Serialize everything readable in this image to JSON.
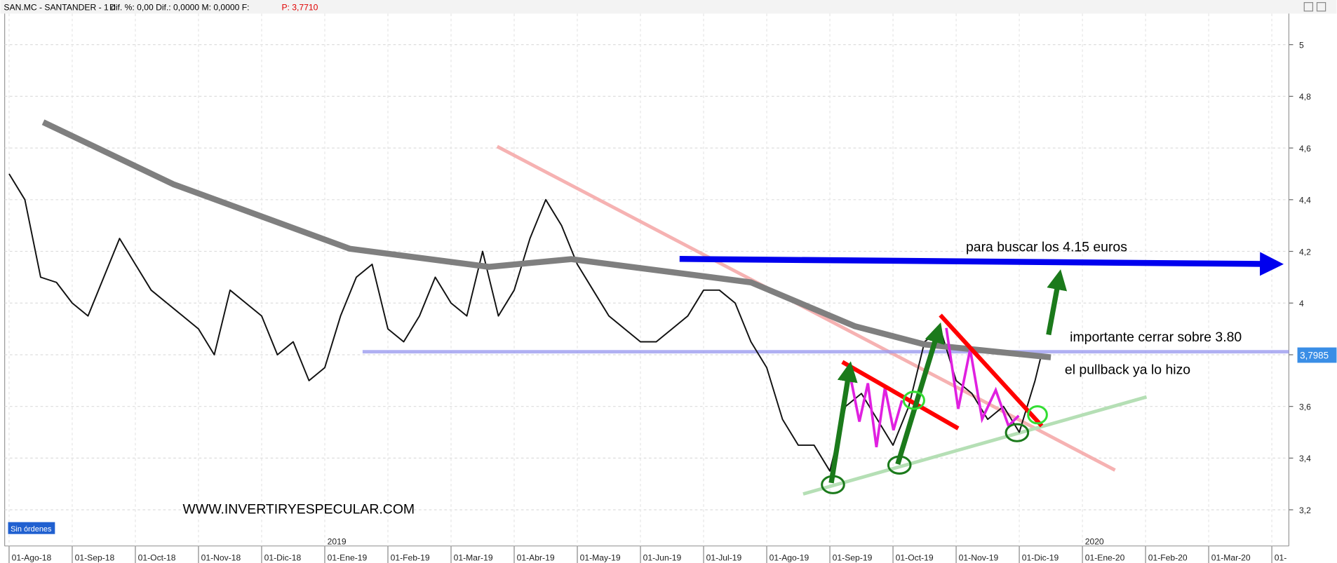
{
  "chart_data": {
    "type": "line",
    "header": {
      "symbol": "SAN.MC - SANTANDER -  1 d",
      "stats": "Dif. %: 0,00   Dif.: 0,0000   M: 0,0000   F:",
      "price": "P: 3,7710"
    },
    "series": [
      {
        "color": "#111111",
        "width": 1.6,
        "x": [
          0,
          0.25,
          0.5,
          0.75,
          1,
          1.25,
          1.5,
          1.75,
          2,
          2.25,
          2.5,
          2.75,
          3,
          3.25,
          3.5,
          3.75,
          4,
          4.25,
          4.5,
          4.75,
          5,
          5.25,
          5.5,
          5.75,
          6,
          6.25,
          6.5,
          6.75,
          7,
          7.25,
          7.5,
          7.75,
          8,
          8.25,
          8.5,
          8.75,
          9,
          9.25,
          9.5,
          9.75,
          10,
          10.25,
          10.5,
          10.75,
          11,
          11.25,
          11.5,
          11.75,
          12,
          12.25,
          12.5,
          12.75,
          13,
          13.25,
          13.5,
          13.75,
          14,
          14.25,
          14.5,
          14.75,
          15,
          15.25,
          15.5,
          15.75,
          16,
          16.25,
          16.35
        ],
        "values": [
          4.5,
          4.4,
          4.1,
          4.08,
          4.0,
          3.95,
          4.1,
          4.25,
          4.15,
          4.05,
          4.0,
          3.95,
          3.9,
          3.8,
          4.05,
          4.0,
          3.95,
          3.8,
          3.85,
          3.7,
          3.75,
          3.95,
          4.1,
          4.15,
          3.9,
          3.85,
          3.95,
          4.1,
          4.0,
          3.95,
          4.2,
          3.95,
          4.05,
          4.25,
          4.4,
          4.3,
          4.15,
          4.05,
          3.95,
          3.9,
          3.85,
          3.85,
          3.9,
          3.95,
          4.05,
          4.05,
          4.0,
          3.85,
          3.75,
          3.55,
          3.45,
          3.45,
          3.35,
          3.6,
          3.65,
          3.55,
          3.45,
          3.6,
          3.85,
          3.9,
          3.7,
          3.65,
          3.55,
          3.6,
          3.5,
          3.7,
          3.8
        ]
      },
      {
        "color": "#7f7f7f",
        "width": 7,
        "x": [
          0.54,
          2.6,
          5.4,
          7.6,
          8.9,
          11.75,
          13.4,
          14.5,
          16.5
        ],
        "values": [
          4.7,
          4.46,
          4.21,
          4.14,
          4.17,
          4.08,
          3.91,
          3.84,
          3.79
        ]
      }
    ],
    "xlim": [
      -0.07,
      20.27
    ],
    "ylim": [
      3.06,
      5.12
    ],
    "xticks": [
      {
        "value": 0,
        "label": "01-Ago-18"
      },
      {
        "value": 1,
        "label": "01-Sep-18"
      },
      {
        "value": 2,
        "label": "01-Oct-18"
      },
      {
        "value": 3,
        "label": "01-Nov-18"
      },
      {
        "value": 4,
        "label": "01-Dic-18"
      },
      {
        "value": 5,
        "label": "01-Ene-19"
      },
      {
        "value": 6,
        "label": "01-Feb-19"
      },
      {
        "value": 7,
        "label": "01-Mar-19"
      },
      {
        "value": 8,
        "label": "01-Abr-19"
      },
      {
        "value": 9,
        "label": "01-May-19"
      },
      {
        "value": 10,
        "label": "01-Jun-19"
      },
      {
        "value": 11,
        "label": "01-Jul-19"
      },
      {
        "value": 12,
        "label": "01-Ago-19"
      },
      {
        "value": 13,
        "label": "01-Sep-19"
      },
      {
        "value": 14,
        "label": "01-Oct-19"
      },
      {
        "value": 15,
        "label": "01-Nov-19"
      },
      {
        "value": 16,
        "label": "01-Dic-19"
      },
      {
        "value": 17,
        "label": "01-Ene-20"
      },
      {
        "value": 18,
        "label": "01-Feb-20"
      },
      {
        "value": 19,
        "label": "01-Mar-20"
      },
      {
        "value": 20,
        "label": "01-"
      }
    ],
    "year_labels": [
      {
        "value": 5,
        "label": "2019"
      },
      {
        "value": 17,
        "label": "2020"
      }
    ],
    "yticks": [
      {
        "value": 3.2,
        "label": "3,2"
      },
      {
        "value": 3.4,
        "label": "3,4"
      },
      {
        "value": 3.6,
        "label": "3,6"
      },
      {
        "value": 3.8,
        "label": "3,8"
      },
      4,
      {
        "value": 4.2,
        "label": "4,2"
      },
      {
        "value": 4.4,
        "label": "4,4"
      },
      {
        "value": 4.6,
        "label": "4,6"
      },
      {
        "value": 4.8,
        "label": "4,8"
      },
      5
    ],
    "last_price": {
      "value": 3.7985,
      "label": "3,7985"
    },
    "annotations": [
      "para buscar los 4.15 euros",
      "importante cerrar sobre 3.80",
      "el pullback ya lo hizo",
      "WWW.INVERTIRYESPECULAR.COM"
    ],
    "status": "Sin órdenes"
  }
}
